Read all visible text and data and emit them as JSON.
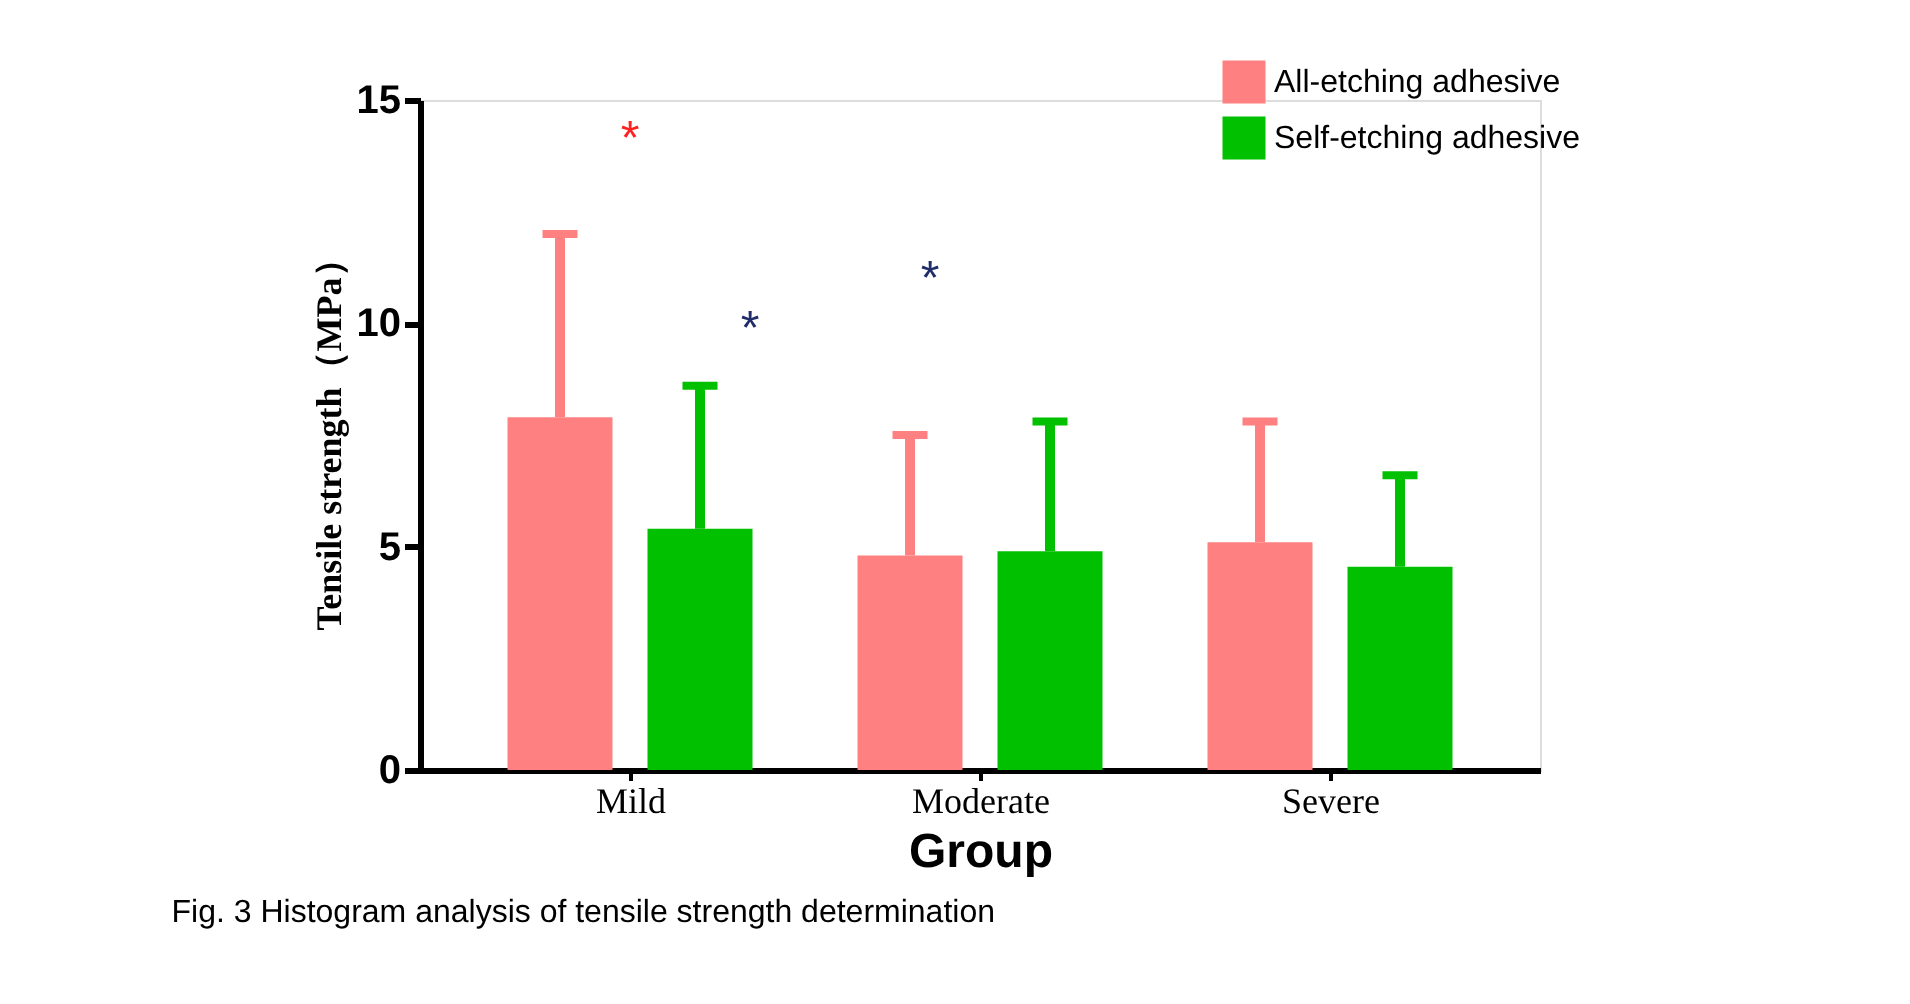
{
  "chart_data": {
    "type": "bar",
    "xlabel": "Group",
    "ylabel": "Tensile strength（MPa）",
    "categories": [
      "Mild",
      "Moderate",
      "Severe"
    ],
    "series": [
      {
        "name": "All-etching adhesive",
        "color": "#ff8080",
        "values": [
          7.9,
          4.8,
          5.1
        ],
        "errors": [
          [
            7.9,
            12.0
          ],
          [
            4.8,
            7.5
          ],
          [
            5.1,
            7.8
          ]
        ]
      },
      {
        "name": "Self-etching adhesive",
        "color": "#00c000",
        "values": [
          5.4,
          4.9,
          4.55
        ],
        "errors": [
          [
            5.4,
            8.6
          ],
          [
            4.9,
            7.8
          ],
          [
            4.55,
            6.6
          ]
        ]
      }
    ],
    "ylim": [
      0,
      15
    ],
    "yticks": [
      0,
      5,
      10,
      15
    ],
    "grid": false,
    "legend": "top right",
    "annotations": [
      "*",
      "*",
      "*",
      "Fig. 3  Histogram analysis of tensile strength determination"
    ]
  }
}
